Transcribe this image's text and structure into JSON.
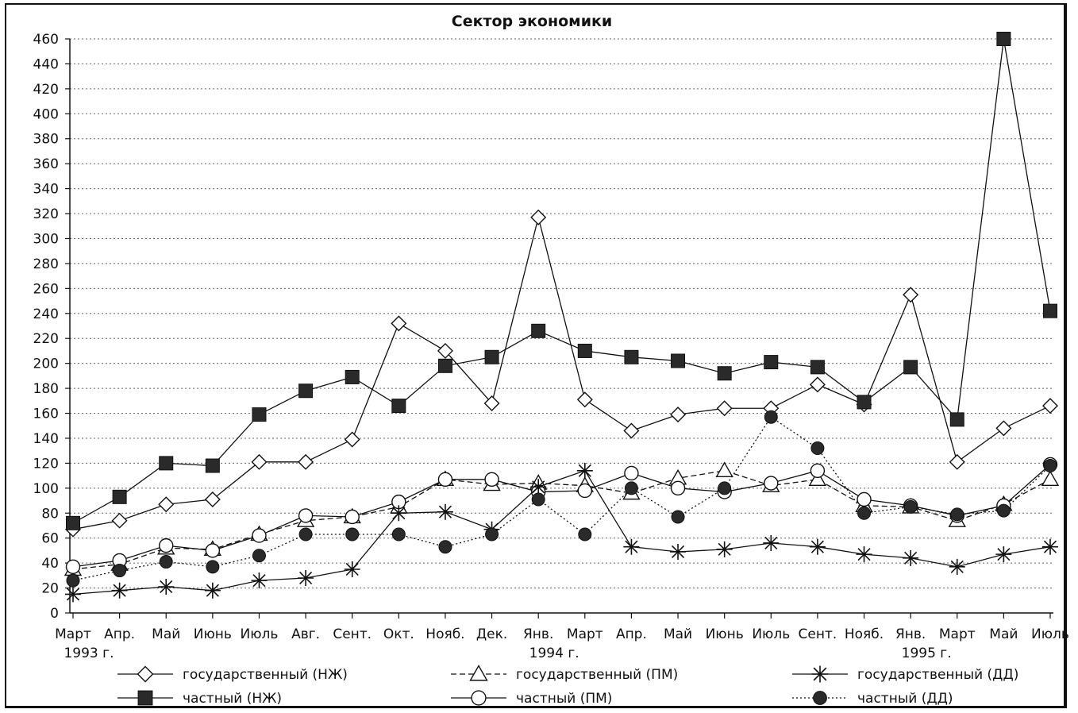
{
  "chart_data": {
    "type": "line",
    "title": "Сектор экономики",
    "ylim": [
      0,
      460
    ],
    "yticks": [
      0,
      20,
      40,
      60,
      80,
      100,
      120,
      140,
      160,
      180,
      200,
      220,
      240,
      260,
      280,
      300,
      320,
      340,
      360,
      380,
      400,
      420,
      440,
      460
    ],
    "categories": [
      "Март",
      "Апр.",
      "Май",
      "Июнь",
      "Июль",
      "Авг.",
      "Сент.",
      "Окт.",
      "Нояб.",
      "Дек.",
      "Янв.",
      "Март",
      "Апр.",
      "Май",
      "Июнь",
      "Июль",
      "Сент.",
      "Нояб.",
      "Янв.",
      "Март",
      "Май",
      "Июль"
    ],
    "year_labels": [
      {
        "index": 0,
        "label": "1993 г."
      },
      {
        "index": 10,
        "label": "1994 г."
      },
      {
        "index": 18,
        "label": "1995 г."
      }
    ],
    "grid": true,
    "legend_position": "bottom",
    "series": [
      {
        "name": "государственный (НЖ)",
        "marker": "diamond-open",
        "line": "solid",
        "values": [
          67,
          74,
          87,
          91,
          121,
          121,
          139,
          232,
          210,
          168,
          317,
          171,
          146,
          159,
          164,
          164,
          183,
          167,
          255,
          121,
          148,
          166
        ]
      },
      {
        "name": "частный (НЖ)",
        "marker": "square-filled",
        "line": "solid",
        "values": [
          72,
          93,
          120,
          118,
          159,
          178,
          189,
          166,
          198,
          205,
          226,
          210,
          205,
          202,
          192,
          201,
          197,
          169,
          197,
          155,
          460,
          242
        ]
      },
      {
        "name": "государственный (ПМ)",
        "marker": "triangle-open",
        "line": "dashed",
        "values": [
          35,
          39,
          52,
          51,
          63,
          74,
          77,
          85,
          107,
          103,
          104,
          102,
          96,
          108,
          114,
          102,
          107,
          86,
          85,
          74,
          87,
          107
        ]
      },
      {
        "name": "частный (ПМ)",
        "marker": "circle-open",
        "line": "solid",
        "values": [
          37,
          42,
          54,
          50,
          62,
          78,
          77,
          89,
          107,
          107,
          97,
          98,
          112,
          100,
          97,
          104,
          114,
          91,
          86,
          78,
          86,
          119
        ]
      },
      {
        "name": "государственный (ДД)",
        "marker": "star",
        "line": "solid",
        "values": [
          15,
          18,
          21,
          18,
          26,
          28,
          35,
          80,
          81,
          67,
          101,
          114,
          53,
          49,
          51,
          56,
          53,
          47,
          44,
          37,
          47,
          53
        ]
      },
      {
        "name": "частный (ДД)",
        "marker": "circle-filled",
        "line": "dotted",
        "values": [
          26,
          34,
          41,
          37,
          46,
          63,
          63,
          63,
          53,
          63,
          91,
          63,
          100,
          77,
          100,
          157,
          132,
          80,
          85,
          79,
          82,
          118
        ]
      }
    ]
  }
}
